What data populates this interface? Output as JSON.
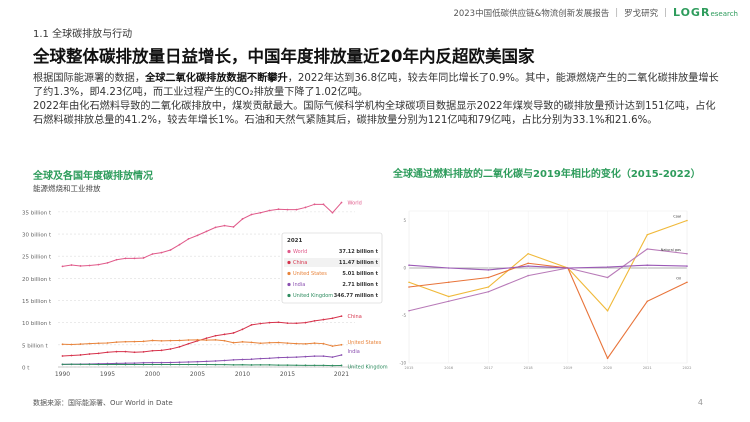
{
  "header": {
    "section": "1.1 全球碳排放与行动",
    "report": "2023中国低碳供应链&物流创新发展报告",
    "publisher": "罗戈研究",
    "logo_main": "LOGR",
    "logo_sub": "esearch"
  },
  "headline": "全球整体碳排放量日益增长，中国年度排放量近20年内反超欧美国家",
  "paragraph": {
    "p1_a": "根据国际能源署的数据，",
    "p1_b": "全球二氧化碳排放数据不断攀升",
    "p1_c": "，2022年达到36.8亿吨，较去年同比增长了0.9%。其中，能源燃烧产生的二氧化碳排放量增长了约1.3%，即4.23亿吨，而工业过程产生的CO₂排放量下降了1.02亿吨。",
    "p2": "2022年由化石燃料导致的二氧化碳排放中，煤炭贡献最大。国际气候科学机构全球碳项目数据显示2022年煤炭导致的碳排放量预计达到151亿吨，占化石燃料碳排放总量的41.2%，较去年增长1%。石油和天然气紧随其后，碳排放量分别为121亿吨和79亿吨，占比分别为33.1%和21.6%。"
  },
  "left_panel": {
    "title": "全球及各国年度碳排放情况",
    "subtitle": "能源燃烧和工业排放"
  },
  "right_panel": {
    "title": "全球通过燃料排放的二氧化碳与2019年相比的变化（2015-2022）"
  },
  "source": "数据来源：国际能源署、Our World in Date",
  "page_number": "4",
  "colors": {
    "accent": "#2e9c5c",
    "world": "#e05a8a",
    "china": "#d6324b",
    "us": "#e8833a",
    "india": "#8a4fb0",
    "uk": "#2e8c5f",
    "coal": "#f0b93a",
    "oil": "#e8743a",
    "gas": "#9b59b6",
    "other": "#b87ab8"
  },
  "chart_data": [
    {
      "type": "line",
      "title": "全球及各国年度碳排放情况",
      "ylabel": "",
      "ylim": [
        0,
        37
      ],
      "yticks": [
        {
          "v": 0,
          "label": "0 t"
        },
        {
          "v": 5,
          "label": "5 billion t"
        },
        {
          "v": 10,
          "label": "10 billion t"
        },
        {
          "v": 15,
          "label": "15 billion t"
        },
        {
          "v": 20,
          "label": "20 billion t"
        },
        {
          "v": 25,
          "label": "25 billion t"
        },
        {
          "v": 30,
          "label": "30 billion t"
        },
        {
          "v": 35,
          "label": "35 billion t"
        }
      ],
      "xticks": [
        1990,
        1995,
        2000,
        2005,
        2010,
        2015,
        2021
      ],
      "x": [
        1990,
        1991,
        1992,
        1993,
        1994,
        1995,
        1996,
        1997,
        1998,
        1999,
        2000,
        2001,
        2002,
        2003,
        2004,
        2005,
        2006,
        2007,
        2008,
        2009,
        2010,
        2011,
        2012,
        2013,
        2014,
        2015,
        2016,
        2017,
        2018,
        2019,
        2020,
        2021
      ],
      "series": [
        {
          "name": "World",
          "color": "#e05a8a",
          "end_label": "World",
          "values": [
            22.7,
            23.0,
            22.8,
            22.9,
            23.1,
            23.5,
            24.2,
            24.5,
            24.5,
            24.6,
            25.5,
            25.8,
            26.4,
            27.6,
            28.9,
            29.7,
            30.6,
            31.5,
            31.9,
            31.6,
            33.4,
            34.4,
            34.8,
            35.3,
            35.6,
            35.5,
            35.5,
            36.0,
            36.7,
            36.7,
            34.8,
            37.1
          ]
        },
        {
          "name": "China",
          "color": "#d6324b",
          "end_label": "China",
          "values": [
            2.48,
            2.59,
            2.72,
            2.92,
            3.07,
            3.32,
            3.46,
            3.47,
            3.32,
            3.42,
            3.67,
            3.76,
            4.05,
            4.55,
            5.24,
            5.9,
            6.5,
            7.05,
            7.37,
            7.68,
            8.5,
            9.5,
            9.8,
            10.0,
            10.1,
            9.9,
            9.87,
            10.0,
            10.4,
            10.7,
            11.0,
            11.47
          ]
        },
        {
          "name": "United States",
          "color": "#e8833a",
          "end_label": "United States",
          "values": [
            5.12,
            5.07,
            5.17,
            5.27,
            5.36,
            5.42,
            5.61,
            5.69,
            5.73,
            5.79,
            5.99,
            5.9,
            5.94,
            5.99,
            6.08,
            6.13,
            6.05,
            6.13,
            5.92,
            5.48,
            5.68,
            5.56,
            5.35,
            5.48,
            5.53,
            5.38,
            5.26,
            5.21,
            5.38,
            5.26,
            4.71,
            5.01
          ]
        },
        {
          "name": "India",
          "color": "#8a4fb0",
          "end_label": "India",
          "values": [
            0.58,
            0.62,
            0.65,
            0.68,
            0.72,
            0.77,
            0.83,
            0.86,
            0.88,
            0.95,
            0.98,
            0.99,
            1.02,
            1.06,
            1.12,
            1.19,
            1.26,
            1.36,
            1.46,
            1.61,
            1.68,
            1.76,
            1.89,
            1.98,
            2.12,
            2.16,
            2.23,
            2.33,
            2.45,
            2.45,
            2.23,
            2.71
          ]
        },
        {
          "name": "United Kingdom",
          "color": "#2e8c5f",
          "end_label": "United Kingdom",
          "values": [
            0.6,
            0.61,
            0.59,
            0.58,
            0.57,
            0.56,
            0.58,
            0.55,
            0.56,
            0.55,
            0.56,
            0.57,
            0.55,
            0.56,
            0.56,
            0.55,
            0.55,
            0.54,
            0.53,
            0.48,
            0.5,
            0.46,
            0.48,
            0.47,
            0.43,
            0.41,
            0.39,
            0.38,
            0.37,
            0.36,
            0.32,
            0.35
          ]
        }
      ],
      "tooltip": {
        "year": "2021",
        "rows": [
          {
            "name": "World",
            "value": "37.12 billion t",
            "color": "#e05a8a"
          },
          {
            "name": "China",
            "value": "11.47 billion t",
            "color": "#d6324b"
          },
          {
            "name": "United States",
            "value": "5.01 billion t",
            "color": "#e8833a"
          },
          {
            "name": "India",
            "value": "2.71 billion t",
            "color": "#8a4fb0"
          },
          {
            "name": "United Kingdom",
            "value": "346.77 million t",
            "color": "#2e8c5f"
          }
        ]
      }
    },
    {
      "type": "line",
      "title": "全球通过燃料排放的二氧化碳与2019年相比的变化（2015-2022）",
      "xticks": [
        2015,
        2016,
        2017,
        2018,
        2019,
        2020,
        2021,
        2022
      ],
      "ylim": [
        -10,
        6
      ],
      "yticks": [
        -10,
        -5,
        0,
        5
      ],
      "x": [
        2015,
        2016,
        2017,
        2018,
        2019,
        2020,
        2021,
        2022
      ],
      "series": [
        {
          "name": "",
          "color": "#f0b93a",
          "end_label": "Coal",
          "values": [
            -1.5,
            -3.0,
            -2.0,
            1.5,
            0.0,
            -4.5,
            3.5,
            5.0
          ]
        },
        {
          "name": "",
          "color": "#e8743a",
          "end_label": "Oil",
          "values": [
            -2.0,
            -1.5,
            -1.0,
            0.5,
            0.0,
            -9.5,
            -3.5,
            -1.5
          ]
        },
        {
          "name": "",
          "color": "#b87ab8",
          "end_label": "Natural gas",
          "values": [
            -4.5,
            -3.5,
            -2.5,
            -0.8,
            0.0,
            -1.0,
            2.0,
            1.5
          ]
        },
        {
          "name": "",
          "color": "#9b59b6",
          "end_label": "",
          "values": [
            0.3,
            0.0,
            -0.2,
            0.2,
            0.0,
            0.1,
            0.3,
            0.2
          ]
        }
      ]
    }
  ]
}
